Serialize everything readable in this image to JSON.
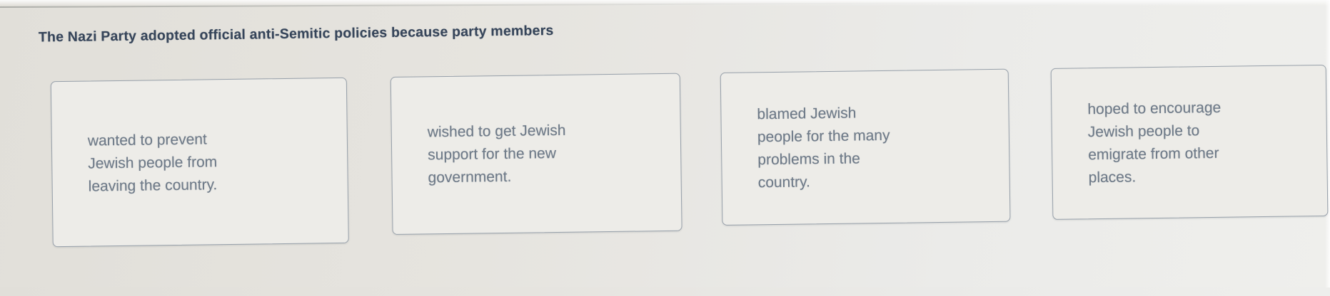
{
  "question": {
    "text": "The Nazi Party adopted official anti-Semitic policies because party members"
  },
  "options": [
    {
      "text": "wanted to prevent\nJewish people from\nleaving the country."
    },
    {
      "text": "wished to get Jewish\nsupport for the new\ngovernment."
    },
    {
      "text": "blamed Jewish\npeople for the many\nproblems in the\ncountry."
    },
    {
      "text": "hoped to encourage\nJewish people to\nemigrate from other\nplaces."
    }
  ],
  "colors": {
    "question_text": "#36455a",
    "option_text": "#6e7a88",
    "card_background": "#edece8",
    "card_border": "#98a1ab",
    "page_bg_left": "#e1dfd9",
    "page_bg_right": "#efefec"
  }
}
